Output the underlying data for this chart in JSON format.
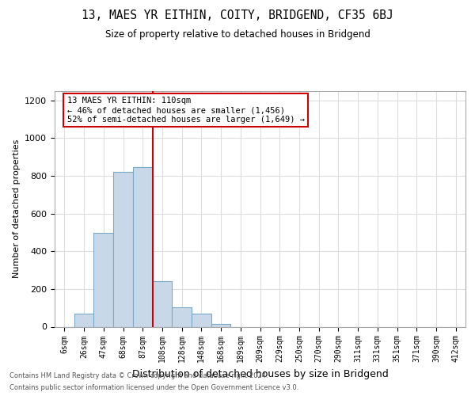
{
  "title": "13, MAES YR EITHIN, COITY, BRIDGEND, CF35 6BJ",
  "subtitle": "Size of property relative to detached houses in Bridgend",
  "xlabel": "Distribution of detached houses by size in Bridgend",
  "ylabel": "Number of detached properties",
  "footer_line1": "Contains HM Land Registry data © Crown copyright and database right 2024.",
  "footer_line2": "Contains public sector information licensed under the Open Government Licence v3.0.",
  "bins": [
    "6sqm",
    "26sqm",
    "47sqm",
    "68sqm",
    "87sqm",
    "108sqm",
    "128sqm",
    "148sqm",
    "168sqm",
    "189sqm",
    "209sqm",
    "229sqm",
    "250sqm",
    "270sqm",
    "290sqm",
    "311sqm",
    "331sqm",
    "351sqm",
    "371sqm",
    "390sqm",
    "412sqm"
  ],
  "values": [
    0,
    70,
    500,
    820,
    845,
    240,
    105,
    70,
    15,
    0,
    0,
    0,
    0,
    0,
    0,
    0,
    0,
    0,
    0,
    0,
    0
  ],
  "bar_color": "#c8d8e8",
  "bar_edge_color": "#7aa8c8",
  "vline_x": 4.5,
  "annotation_text_line1": "13 MAES YR EITHIN: 110sqm",
  "annotation_text_line2": "← 46% of detached houses are smaller (1,456)",
  "annotation_text_line3": "52% of semi-detached houses are larger (1,649) →",
  "ylim": [
    0,
    1250
  ],
  "yticks": [
    0,
    200,
    400,
    600,
    800,
    1000,
    1200
  ],
  "grid_color": "#dddddd",
  "annotation_box_color": "#ffffff",
  "annotation_box_edge_color": "#cc0000",
  "vline_color": "#cc0000",
  "background_color": "#ffffff"
}
